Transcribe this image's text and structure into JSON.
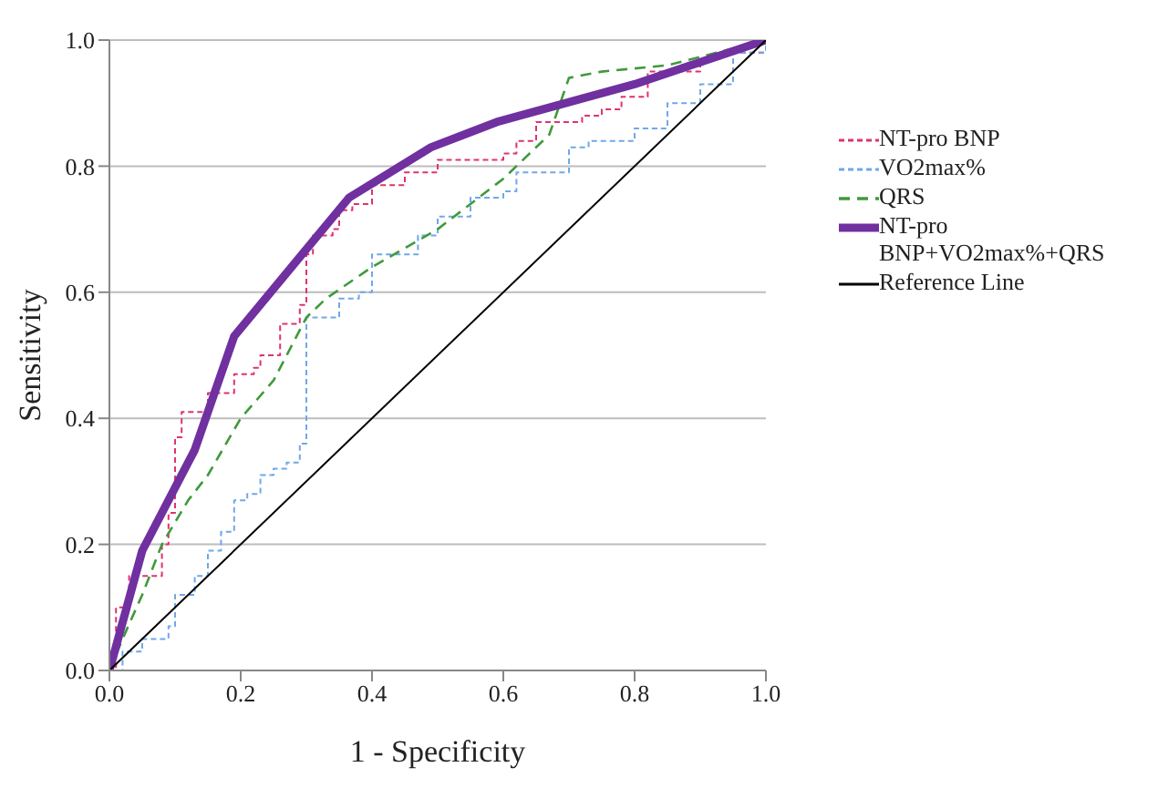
{
  "chart_data": {
    "type": "line",
    "xlabel": "1 - Specificity",
    "ylabel": "Sensitivity",
    "xlim": [
      0,
      1
    ],
    "ylim": [
      0,
      1
    ],
    "xticks": [
      {
        "value": 0,
        "label": "0.0"
      },
      {
        "value": 0.2,
        "label": "0.2"
      },
      {
        "value": 0.4,
        "label": "0.4"
      },
      {
        "value": 0.6,
        "label": "0.6"
      },
      {
        "value": 0.8,
        "label": "0.8"
      },
      {
        "value": 1,
        "label": "1.0"
      }
    ],
    "yticks": [
      {
        "value": 0,
        "label": "0.0"
      },
      {
        "value": 0.2,
        "label": "0.2"
      },
      {
        "value": 0.4,
        "label": "0.4"
      },
      {
        "value": 0.6,
        "label": "0.6"
      },
      {
        "value": 0.8,
        "label": "0.8"
      },
      {
        "value": 1,
        "label": "1.0"
      }
    ],
    "grid": "y",
    "legend": "right",
    "marker": "none",
    "series": [
      {
        "name": "NT-pro BNP",
        "color": "#e0326e",
        "line_style": "dotted",
        "type": "step",
        "x": [
          0,
          0.01,
          0.01,
          0.03,
          0.03,
          0.07,
          0.08,
          0.09,
          0.1,
          0.1,
          0.11,
          0.15,
          0.15,
          0.18,
          0.19,
          0.22,
          0.23,
          0.25,
          0.26,
          0.29,
          0.3,
          0.31,
          0.34,
          0.35,
          0.37,
          0.4,
          0.45,
          0.5,
          0.6,
          0.62,
          0.65,
          0.72,
          0.75,
          0.78,
          0.82,
          0.9,
          0.93,
          1
        ],
        "values": [
          0,
          0.03,
          0.1,
          0.12,
          0.15,
          0.15,
          0.2,
          0.25,
          0.3,
          0.37,
          0.41,
          0.41,
          0.44,
          0.44,
          0.47,
          0.48,
          0.5,
          0.5,
          0.55,
          0.58,
          0.66,
          0.69,
          0.7,
          0.73,
          0.74,
          0.77,
          0.79,
          0.81,
          0.82,
          0.84,
          0.87,
          0.88,
          0.89,
          0.91,
          0.95,
          0.97,
          0.98,
          1
        ]
      },
      {
        "name": "VO2max%",
        "color": "#6fa8e8",
        "line_style": "dotted",
        "type": "step",
        "x": [
          0,
          0.02,
          0.05,
          0.09,
          0.1,
          0.13,
          0.15,
          0.17,
          0.19,
          0.21,
          0.23,
          0.25,
          0.27,
          0.29,
          0.3,
          0.3,
          0.34,
          0.35,
          0.38,
          0.4,
          0.45,
          0.47,
          0.5,
          0.55,
          0.6,
          0.62,
          0.7,
          0.73,
          0.8,
          0.85,
          0.9,
          0.95,
          1
        ],
        "values": [
          0,
          0.03,
          0.05,
          0.07,
          0.12,
          0.15,
          0.19,
          0.22,
          0.27,
          0.28,
          0.31,
          0.32,
          0.33,
          0.36,
          0.41,
          0.56,
          0.56,
          0.59,
          0.6,
          0.66,
          0.66,
          0.69,
          0.72,
          0.75,
          0.76,
          0.79,
          0.83,
          0.84,
          0.86,
          0.9,
          0.93,
          0.98,
          1
        ]
      },
      {
        "name": "QRS",
        "color": "#3f9a3c",
        "line_style": "dashed",
        "x": [
          0,
          0.02,
          0.05,
          0.08,
          0.12,
          0.15,
          0.2,
          0.25,
          0.3,
          0.33,
          0.4,
          0.5,
          0.6,
          0.67,
          0.7,
          0.75,
          0.85,
          1
        ],
        "values": [
          0,
          0.05,
          0.12,
          0.2,
          0.27,
          0.31,
          0.4,
          0.46,
          0.56,
          0.59,
          0.64,
          0.7,
          0.78,
          0.85,
          0.94,
          0.95,
          0.96,
          1
        ]
      },
      {
        "name": "NT-pro BNP+VO2max%+QRS",
        "color": "#7030a0",
        "line_style": "solid",
        "x": [
          0,
          0.05,
          0.13,
          0.19,
          0.365,
          0.49,
          0.59,
          0.8,
          1
        ],
        "values": [
          0,
          0.19,
          0.35,
          0.53,
          0.75,
          0.83,
          0.87,
          0.93,
          1
        ]
      },
      {
        "name": "Reference Line",
        "color": "#000000",
        "line_style": "solid",
        "x": [
          0,
          1
        ],
        "values": [
          0,
          1
        ]
      }
    ]
  }
}
